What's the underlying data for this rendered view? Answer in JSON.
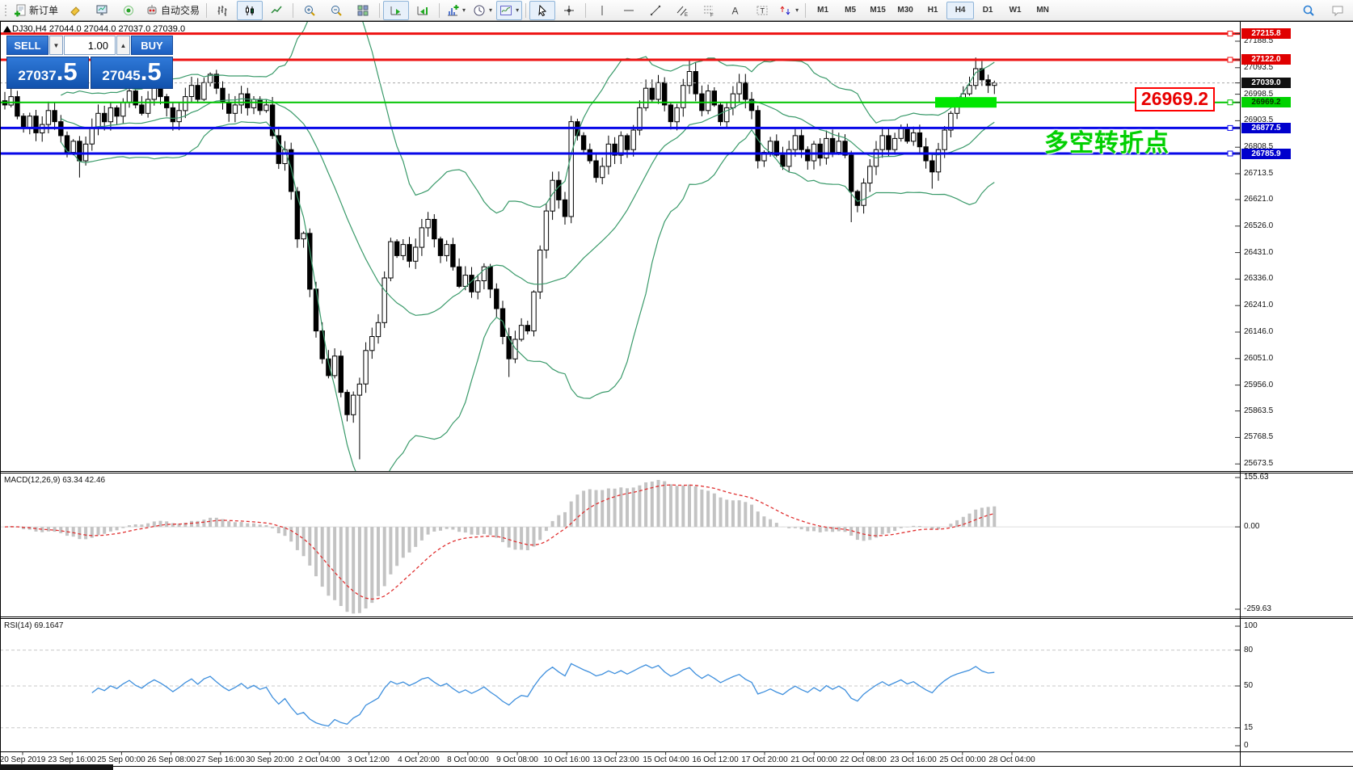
{
  "toolbar": {
    "new_order_label": "新订单",
    "autotrading_label": "自动交易",
    "timeframes": [
      "M1",
      "M5",
      "M15",
      "M30",
      "H1",
      "H4",
      "D1",
      "W1",
      "MN"
    ],
    "active_timeframe": "H4"
  },
  "trade_panel": {
    "sell_label": "SELL",
    "buy_label": "BUY",
    "volume": "1.00",
    "sell_price_main": "27037",
    "sell_price_frac": ".5",
    "buy_price_main": "27045",
    "buy_price_frac": ".5"
  },
  "chart": {
    "title": "DJ30,H4 27044.0 27044.0 27037.0 27039.0",
    "callout": "26969.2",
    "annotation": "多空转折点",
    "colors": {
      "bollinger": "#3a9a6a",
      "candle_up": "#ffffff",
      "candle_down": "#000000",
      "macd_hist": "#c3c3c3",
      "macd_signal": "#e03030",
      "rsi_line": "#3e8fdd",
      "level_dash": "#c8c8c8"
    },
    "y_ticks": [
      27188.5,
      27093.5,
      26998.5,
      26903.5,
      26808.5,
      26713.5,
      26621.0,
      26526.0,
      26431.0,
      26336.0,
      26241.0,
      26146.0,
      26051.0,
      25956.0,
      25863.5,
      25768.5,
      25673.5
    ],
    "badges": [
      {
        "label": "27215.8",
        "price": 27215.8,
        "bg": "#e00000",
        "fg": "#ffffff"
      },
      {
        "label": "27122.0",
        "price": 27122.0,
        "bg": "#e00000",
        "fg": "#ffffff"
      },
      {
        "label": "27039.0",
        "price": 27039.0,
        "bg": "#101010",
        "fg": "#ffffff"
      },
      {
        "label": "26969.2",
        "price": 26969.2,
        "bg": "#00d200",
        "fg": "#063000"
      },
      {
        "label": "26877.5",
        "price": 26877.5,
        "bg": "#0000cd",
        "fg": "#ffffff"
      },
      {
        "label": "26785.9",
        "price": 26785.9,
        "bg": "#0000cd",
        "fg": "#ffffff"
      }
    ],
    "hlines": [
      {
        "price": 27215.8,
        "color": "#ee1111",
        "width": 3,
        "handle": true
      },
      {
        "price": 27122.0,
        "color": "#ee1111",
        "width": 3,
        "handle": true
      },
      {
        "price": 27039.0,
        "color": "#a8a8a8",
        "width": 1,
        "dash": "3,3",
        "handle": false
      },
      {
        "price": 26969.2,
        "color": "#00c400",
        "width": 2,
        "handle": true
      },
      {
        "price": 26877.5,
        "color": "#0808e8",
        "width": 3,
        "handle": true
      },
      {
        "price": 26785.9,
        "color": "#0808e8",
        "width": 3,
        "handle": true
      }
    ],
    "highlight_box": {
      "price": 26969.2,
      "x": 1157,
      "width": 76,
      "height": 13,
      "color": "#00e600"
    },
    "x_labels": [
      "20 Sep 2019",
      "23 Sep 16:00",
      "25 Sep 00:00",
      "26 Sep 08:00",
      "27 Sep 16:00",
      "30 Sep 20:00",
      "2 Oct 04:00",
      "3 Oct 12:00",
      "4 Oct 20:00",
      "8 Oct 00:00",
      "9 Oct 08:00",
      "10 Oct 16:00",
      "13 Oct 23:00",
      "15 Oct 04:00",
      "16 Oct 12:00",
      "17 Oct 20:00",
      "21 Oct 00:00",
      "22 Oct 08:00",
      "23 Oct 16:00",
      "25 Oct 00:00",
      "28 Oct 04:00"
    ]
  },
  "macd_panel": {
    "label": "MACD(12,26,9) 63.34 42.46",
    "axis": [
      {
        "value": 155.63,
        "label": "155.63"
      },
      {
        "value": 0,
        "label": "0.00"
      },
      {
        "value": -259.63,
        "label": "-259.63"
      }
    ]
  },
  "rsi_panel": {
    "label": "RSI(14) 69.1647",
    "axis": [
      {
        "value": 100,
        "label": "100"
      },
      {
        "value": 80,
        "label": "80"
      },
      {
        "value": 50,
        "label": "50"
      },
      {
        "value": 15,
        "label": "15"
      },
      {
        "value": 0,
        "label": "0"
      }
    ],
    "levels": [
      80,
      50,
      15
    ]
  },
  "chart_data": {
    "type": "candlestick",
    "symbol": "DJ30",
    "period": "H4",
    "open": 27044.0,
    "high": 27044.0,
    "low": 27037.0,
    "close": 27039.0,
    "bid": 27037.5,
    "ask": 27045.5,
    "price_axis_range": {
      "top": 27258,
      "bottom": 25648
    },
    "macd_axis": {
      "max": 155.63,
      "min": -259.63
    },
    "rsi_axis": {
      "max": 100,
      "min": 0
    },
    "closes": [
      26960,
      26990,
      26920,
      26880,
      26920,
      26860,
      26890,
      26940,
      26900,
      26850,
      26790,
      26830,
      26760,
      26820,
      26880,
      26930,
      26900,
      26950,
      26920,
      26970,
      27010,
      26960,
      26930,
      26980,
      27020,
      26990,
      26950,
      26900,
      26940,
      26990,
      27030,
      26980,
      27040,
      27070,
      27020,
      26970,
      26930,
      26960,
      27000,
      26950,
      26980,
      26940,
      26960,
      26850,
      26750,
      26800,
      26650,
      26480,
      26500,
      26300,
      26150,
      26050,
      25990,
      26060,
      25930,
      25850,
      25920,
      25960,
      26080,
      26130,
      26180,
      26340,
      26470,
      26420,
      26460,
      26400,
      26450,
      26520,
      26550,
      26480,
      26420,
      26460,
      26380,
      26310,
      26350,
      26290,
      26330,
      26380,
      26300,
      26230,
      26130,
      26050,
      26120,
      26170,
      26150,
      26290,
      26440,
      26580,
      26690,
      26620,
      26560,
      26900,
      26850,
      26800,
      26760,
      26700,
      26740,
      26820,
      26780,
      26850,
      26800,
      26870,
      26950,
      27020,
      26980,
      27040,
      26960,
      26900,
      26950,
      27030,
      27080,
      27000,
      26940,
      27010,
      26960,
      26900,
      26950,
      27000,
      27040,
      26980,
      26940,
      26760,
      26790,
      26830,
      26780,
      26740,
      26800,
      26850,
      26800,
      26760,
      26820,
      26770,
      26840,
      26790,
      26830,
      26780,
      26650,
      26600,
      26680,
      26740,
      26800,
      26850,
      26800,
      26840,
      26880,
      26830,
      26860,
      26810,
      26760,
      26720,
      26800,
      26870,
      26930,
      26970,
      27000,
      27030,
      27090,
      27050,
      27030,
      27039
    ],
    "wick_overrides": {
      "12": {
        "low": 26700
      },
      "57": {
        "low": 25690
      },
      "81": {
        "low": 25985
      },
      "110": {
        "high": 27120
      },
      "136": {
        "low": 26540
      },
      "149": {
        "low": 26660
      },
      "156": {
        "high": 27130
      }
    },
    "indicators": {
      "bollinger": {
        "period": 20,
        "deviation": 2
      },
      "macd": {
        "fast": 12,
        "slow": 26,
        "signal": 9,
        "main": 63.34,
        "signal_value": 42.46
      },
      "rsi": {
        "period": 14,
        "value": 69.1647
      }
    }
  }
}
